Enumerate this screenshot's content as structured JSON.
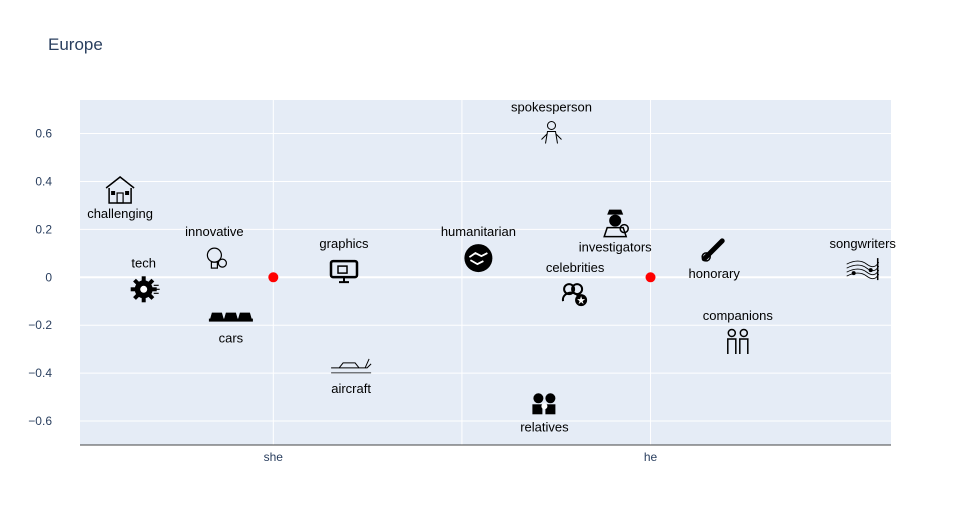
{
  "chart_data": {
    "type": "scatter",
    "title": "Europe",
    "xlabel": "",
    "ylabel": "",
    "x_tick_labels": [
      "she",
      "he"
    ],
    "x_tick_values": [
      -0.8,
      0.8
    ],
    "y_tick_labels": [
      "0.6",
      "0.4",
      "0.2",
      "0",
      "−0.2",
      "−0.4",
      "−0.6"
    ],
    "y_tick_values": [
      0.6,
      0.4,
      0.2,
      0,
      -0.2,
      -0.4,
      -0.6
    ],
    "xlim": [
      -1.62,
      1.82
    ],
    "ylim": [
      -0.7,
      0.74
    ],
    "grid": true,
    "anchors": [
      {
        "label": "she",
        "x": -0.8,
        "y": 0,
        "color": "#ff0000"
      },
      {
        "label": "he",
        "x": 0.8,
        "y": 0,
        "color": "#ff0000"
      }
    ],
    "points": [
      {
        "label": "spokesperson",
        "x": 0.38,
        "y": 0.6,
        "icon": "person-icon",
        "label_pos": "above"
      },
      {
        "label": "challenging",
        "x": -1.45,
        "y": 0.36,
        "icon": "house-icon",
        "label_pos": "below"
      },
      {
        "label": "innovative",
        "x": -1.05,
        "y": 0.08,
        "icon": "lightbulb-icon",
        "label_pos": "above"
      },
      {
        "label": "tech",
        "x": -1.35,
        "y": -0.05,
        "icon": "gear-icon",
        "label_pos": "above"
      },
      {
        "label": "graphics",
        "x": -0.5,
        "y": 0.03,
        "icon": "monitor-icon",
        "label_pos": "above"
      },
      {
        "label": "cars",
        "x": -0.98,
        "y": -0.16,
        "icon": "cars-icon",
        "label_pos": "below"
      },
      {
        "label": "aircraft",
        "x": -0.47,
        "y": -0.37,
        "icon": "airplane-icon",
        "label_pos": "below"
      },
      {
        "label": "humanitarian",
        "x": 0.07,
        "y": 0.08,
        "icon": "handshake-icon",
        "label_pos": "above"
      },
      {
        "label": "investigators",
        "x": 0.65,
        "y": 0.22,
        "icon": "detective-icon",
        "label_pos": "below"
      },
      {
        "label": "celebrities",
        "x": 0.48,
        "y": -0.07,
        "icon": "group-star-icon",
        "label_pos": "above"
      },
      {
        "label": "relatives",
        "x": 0.35,
        "y": -0.53,
        "icon": "family-icon",
        "label_pos": "below"
      },
      {
        "label": "honorary",
        "x": 1.07,
        "y": 0.11,
        "icon": "medal-icon",
        "label_pos": "below"
      },
      {
        "label": "companions",
        "x": 1.17,
        "y": -0.27,
        "icon": "couple-icon",
        "label_pos": "above"
      },
      {
        "label": "songwriters",
        "x": 1.7,
        "y": 0.03,
        "icon": "music-icon",
        "label_pos": "above"
      }
    ]
  }
}
